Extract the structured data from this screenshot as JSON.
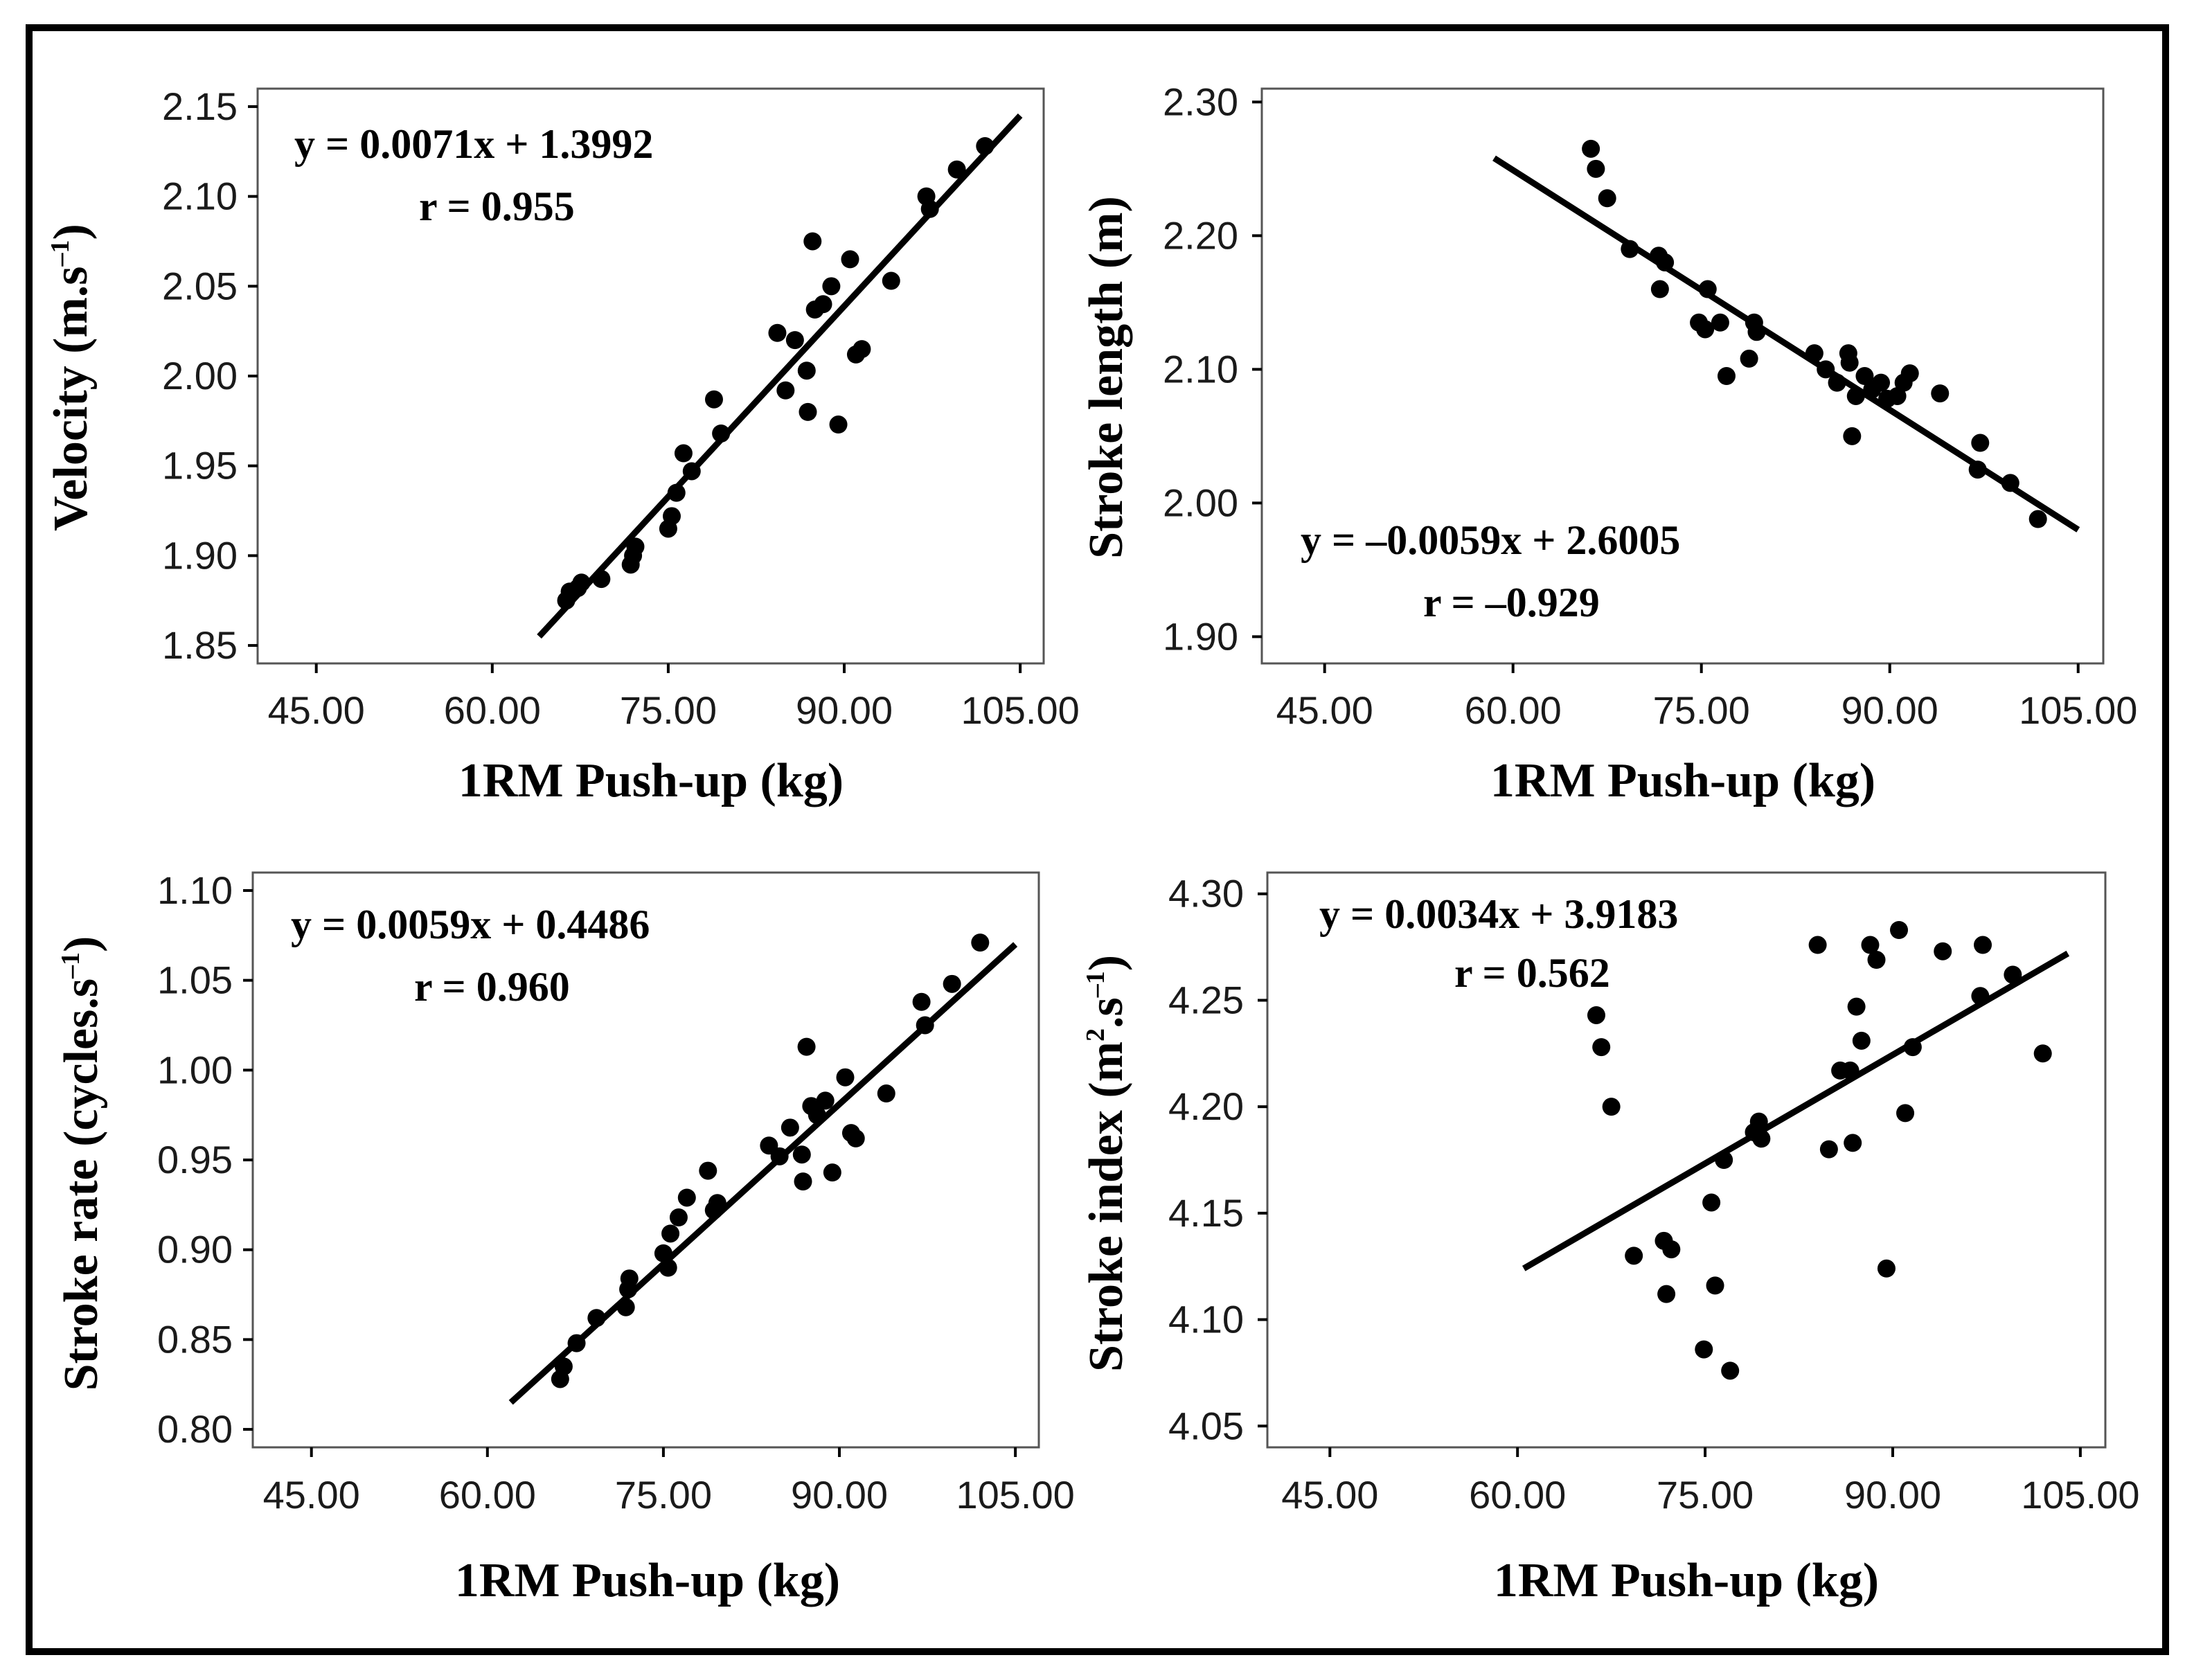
{
  "chart_data": [
    {
      "type": "scatter",
      "xlabel": "1RM Push-up (kg)",
      "ylabel": {
        "main": "Velocity (m.s",
        "sup": "–1",
        "close": ")"
      },
      "equation": "y = 0.0071x + 1.3992",
      "r": "r = 0.955",
      "xlim": [
        40,
        107
      ],
      "ylim": [
        1.84,
        2.16
      ],
      "xticks": [
        45,
        60,
        75,
        90,
        105
      ],
      "xtick_labels": [
        "45.00",
        "60.00",
        "75.00",
        "90.00",
        "105.00"
      ],
      "yticks": [
        1.85,
        1.9,
        1.95,
        2.0,
        2.05,
        2.1,
        2.15
      ],
      "ytick_labels": [
        "1.85",
        "1.90",
        "1.95",
        "2.00",
        "2.05",
        "2.10",
        "2.15"
      ],
      "fit": {
        "x": [
          64,
          105
        ],
        "y": [
          1.855,
          2.145
        ]
      },
      "x": [
        66.3,
        66.6,
        67.3,
        67.6,
        69.3,
        71.8,
        72,
        72.2,
        75,
        75.3,
        75.7,
        76.3,
        77,
        78.9,
        79.5,
        84.3,
        85,
        85.8,
        86.8,
        86.9,
        87.3,
        87.5,
        88.2,
        88.9,
        89.5,
        90.5,
        91,
        91.5,
        94,
        97,
        97.3,
        99.6,
        102
      ],
      "y": [
        1.875,
        1.88,
        1.882,
        1.885,
        1.887,
        1.895,
        1.9,
        1.905,
        1.915,
        1.922,
        1.935,
        1.957,
        1.947,
        1.987,
        1.968,
        2.024,
        1.992,
        2.02,
        2.003,
        1.98,
        2.075,
        2.037,
        2.04,
        2.05,
        1.973,
        2.065,
        2.012,
        2.015,
        2.053,
        2.1,
        2.093,
        2.115,
        2.128
      ]
    },
    {
      "type": "scatter",
      "xlabel": "1RM Push-up (kg)",
      "ylabel": {
        "main": "Stroke length (m)",
        "sup": "",
        "close": ""
      },
      "equation": "y = –0.0059x + 2.6005",
      "r": "r = –0.929",
      "xlim": [
        40,
        107
      ],
      "ylim": [
        1.88,
        2.31
      ],
      "xticks": [
        45,
        60,
        75,
        90,
        105
      ],
      "xtick_labels": [
        "45.00",
        "60.00",
        "75.00",
        "90.00",
        "105.00"
      ],
      "yticks": [
        1.9,
        2.0,
        2.1,
        2.2,
        2.3
      ],
      "ytick_labels": [
        "1.90",
        "2.00",
        "2.10",
        "2.20",
        "2.30"
      ],
      "fit": {
        "x": [
          58.5,
          105
        ],
        "y": [
          2.258,
          1.98
        ]
      },
      "x": [
        66.2,
        66.6,
        67.5,
        69.3,
        71.6,
        71.7,
        72.1,
        74.8,
        75.5,
        75.3,
        76.5,
        77,
        78.8,
        79.2,
        79.4,
        84,
        84.9,
        85.8,
        86.7,
        86.8,
        87,
        87.3,
        88,
        88.6,
        89.3,
        89.8,
        90.6,
        91.1,
        91.6,
        94,
        97,
        97.2,
        99.6,
        101.8
      ],
      "y": [
        2.265,
        2.25,
        2.228,
        2.19,
        2.185,
        2.16,
        2.18,
        2.135,
        2.16,
        2.13,
        2.135,
        2.095,
        2.108,
        2.135,
        2.128,
        2.112,
        2.1,
        2.09,
        2.112,
        2.105,
        2.05,
        2.08,
        2.095,
        2.085,
        2.09,
        2.078,
        2.08,
        2.09,
        2.097,
        2.082,
        2.025,
        2.045,
        2.015,
        1.988
      ]
    },
    {
      "type": "scatter",
      "xlabel": "1RM Push-up (kg)",
      "ylabel": {
        "main": "Stroke rate (cycles.s",
        "sup": "–1",
        "close": ")"
      },
      "equation": "y = 0.0059x + 0.4486",
      "r": "r = 0.960",
      "xlim": [
        40,
        107
      ],
      "ylim": [
        0.79,
        1.11
      ],
      "xticks": [
        45,
        60,
        75,
        90,
        105
      ],
      "xtick_labels": [
        "45.00",
        "60.00",
        "75.00",
        "90.00",
        "105.00"
      ],
      "yticks": [
        0.8,
        0.85,
        0.9,
        0.95,
        1.0,
        1.05,
        1.1
      ],
      "ytick_labels": [
        "0.80",
        "0.85",
        "0.90",
        "0.95",
        "1.00",
        "1.05",
        "1.10"
      ],
      "fit": {
        "x": [
          62,
          105
        ],
        "y": [
          0.815,
          1.07
        ]
      },
      "x": [
        66.2,
        66.5,
        67.6,
        69.3,
        71.8,
        72,
        72.1,
        75,
        75.4,
        75.6,
        76.3,
        77,
        78.8,
        79.3,
        79.6,
        84,
        84.9,
        85.8,
        86.8,
        86.9,
        87.2,
        87.6,
        88.1,
        88.8,
        89.4,
        90.5,
        91,
        91.4,
        94,
        97,
        97.3,
        99.6,
        102
      ],
      "y": [
        0.828,
        0.835,
        0.848,
        0.862,
        0.868,
        0.878,
        0.884,
        0.898,
        0.89,
        0.909,
        0.918,
        0.929,
        0.944,
        0.922,
        0.926,
        0.958,
        0.952,
        0.968,
        0.953,
        0.938,
        1.013,
        0.98,
        0.975,
        0.983,
        0.943,
        0.996,
        0.965,
        0.962,
        0.987,
        1.038,
        1.025,
        1.048,
        1.071
      ]
    },
    {
      "type": "scatter",
      "xlabel": "1RM Push-up (kg)",
      "ylabel": {
        "main": "Stroke index (m",
        "sup": "2",
        "mid": ".s",
        "sup2": "–1",
        "close": ")"
      },
      "equation": "y = 0.0034x + 3.9183",
      "r": "r = 0.562",
      "xlim": [
        40,
        107
      ],
      "ylim": [
        4.04,
        4.31
      ],
      "xticks": [
        45,
        60,
        75,
        90,
        105
      ],
      "xtick_labels": [
        "45.00",
        "60.00",
        "75.00",
        "90.00",
        "105.00"
      ],
      "yticks": [
        4.05,
        4.1,
        4.15,
        4.2,
        4.25,
        4.3
      ],
      "ytick_labels": [
        "4.05",
        "4.10",
        "4.15",
        "4.20",
        "4.25",
        "4.30"
      ],
      "fit": {
        "x": [
          60.5,
          104
        ],
        "y": [
          4.124,
          4.272
        ]
      },
      "x": [
        66.3,
        66.7,
        67.5,
        69.3,
        71.7,
        71.9,
        72.3,
        74.9,
        75.5,
        75.8,
        76.5,
        77,
        78.9,
        79.3,
        79.5,
        84,
        84.9,
        85.8,
        86.6,
        86.8,
        87.1,
        87.5,
        88.2,
        88.7,
        89.5,
        90.5,
        91,
        91.6,
        94,
        97,
        97.2,
        99.6,
        102
      ],
      "y": [
        4.243,
        4.228,
        4.2,
        4.13,
        4.137,
        4.112,
        4.133,
        4.086,
        4.155,
        4.116,
        4.175,
        4.076,
        4.188,
        4.193,
        4.185,
        4.276,
        4.18,
        4.217,
        4.217,
        4.183,
        4.247,
        4.231,
        4.276,
        4.269,
        4.124,
        4.283,
        4.197,
        4.228,
        4.273,
        4.252,
        4.276,
        4.262,
        4.225
      ]
    }
  ]
}
